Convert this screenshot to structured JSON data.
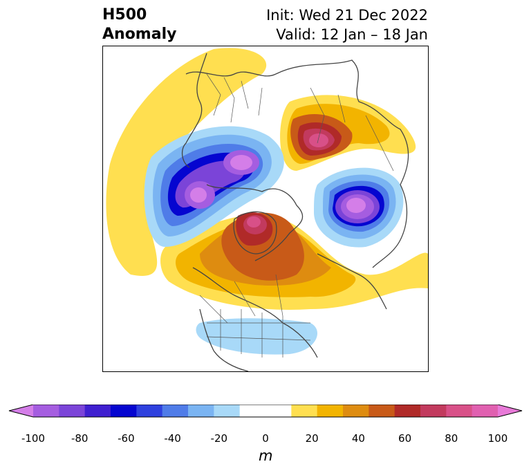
{
  "header": {
    "title_line1": "H500",
    "title_line2": "Anomaly",
    "init_text": "Init: Wed 21 Dec 2022",
    "valid_text": "Valid: 12 Jan – 18 Jan"
  },
  "map": {
    "projection": "north-polar-stereographic",
    "field": "500 hPa geopotential height anomaly",
    "features": [
      {
        "name": "negative-anomaly-western-russia",
        "sign": "negative",
        "peak_m": -100
      },
      {
        "name": "negative-anomaly-siberia-alaska",
        "sign": "negative",
        "peak_m": -100
      },
      {
        "name": "positive-anomaly-arctic-greenland",
        "sign": "positive",
        "peak_m": 80
      },
      {
        "name": "positive-anomaly-east-siberia",
        "sign": "positive",
        "peak_m": 90
      },
      {
        "name": "weak-negative-us",
        "sign": "negative",
        "peak_m": -20
      }
    ]
  },
  "colorbar": {
    "unit": "m",
    "min": -100,
    "max": 100,
    "step": 10,
    "tick_labels": [
      "-100",
      "-80",
      "-60",
      "-40",
      "-20",
      "0",
      "20",
      "40",
      "60",
      "80",
      "100"
    ],
    "colors": [
      "#d47ee8",
      "#a55de0",
      "#7b44d8",
      "#3f1fd0",
      "#0505d0",
      "#2e40de",
      "#4f7ce8",
      "#7ab4f2",
      "#a8d9f8",
      "#ffffff",
      "#ffffff",
      "#ffdf50",
      "#f2b400",
      "#de8c10",
      "#c85a18",
      "#b02a28",
      "#c23a5e",
      "#d85088",
      "#e060b0",
      "#e87ad8"
    ],
    "extend": "both"
  }
}
